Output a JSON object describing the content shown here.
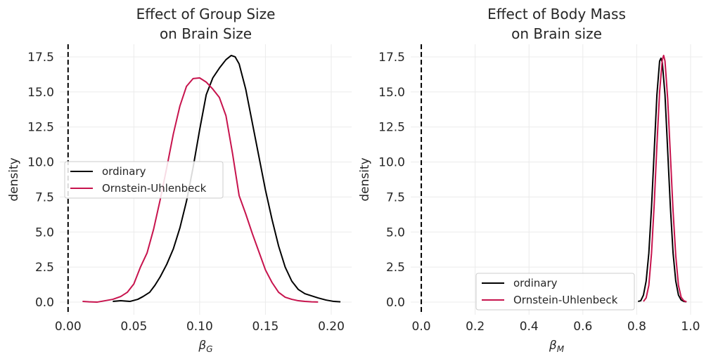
{
  "colors": {
    "ordinary": "#000000",
    "ou": "#c7134d",
    "zero_line": "#000000"
  },
  "chart_data": [
    {
      "type": "line",
      "title_lines": [
        "Effect of Group Size",
        "on Brain Size"
      ],
      "xlabel_main": "β",
      "xlabel_sub": "G",
      "ylabel": "density",
      "xlim": [
        -0.0063,
        0.2155
      ],
      "ylim": [
        -0.9,
        18.4
      ],
      "xticks": [
        0.0,
        0.05,
        0.1,
        0.15,
        0.2
      ],
      "xtick_labels": [
        "0.00",
        "0.05",
        "0.10",
        "0.15",
        "0.20"
      ],
      "yticks": [
        0.0,
        2.5,
        5.0,
        7.5,
        10.0,
        12.5,
        15.0,
        17.5
      ],
      "ytick_labels": [
        "0.0",
        "2.5",
        "5.0",
        "7.5",
        "10.0",
        "12.5",
        "15.0",
        "17.5"
      ],
      "vline_x": 0,
      "legend_position": "center-left",
      "series": [
        {
          "name": "ordinary",
          "color_key": "ordinary",
          "x": [
            0.034,
            0.04,
            0.047,
            0.053,
            0.057,
            0.062,
            0.066,
            0.07,
            0.075,
            0.08,
            0.085,
            0.09,
            0.095,
            0.1,
            0.105,
            0.11,
            0.115,
            0.12,
            0.124,
            0.127,
            0.13,
            0.135,
            0.14,
            0.145,
            0.15,
            0.155,
            0.16,
            0.165,
            0.17,
            0.175,
            0.18,
            0.185,
            0.19,
            0.196,
            0.202,
            0.207
          ],
          "y": [
            0.05,
            0.1,
            0.05,
            0.2,
            0.4,
            0.7,
            1.2,
            1.8,
            2.7,
            3.8,
            5.3,
            7.2,
            9.6,
            12.3,
            14.8,
            16.0,
            16.7,
            17.3,
            17.6,
            17.5,
            17.0,
            15.2,
            12.8,
            10.4,
            8.0,
            5.9,
            4.0,
            2.5,
            1.5,
            0.9,
            0.6,
            0.45,
            0.3,
            0.15,
            0.05,
            0.02
          ]
        },
        {
          "name": "Ornstein-Uhlenbeck",
          "color_key": "ou",
          "x": [
            0.011,
            0.016,
            0.022,
            0.028,
            0.034,
            0.04,
            0.045,
            0.05,
            0.055,
            0.06,
            0.065,
            0.07,
            0.075,
            0.08,
            0.085,
            0.09,
            0.095,
            0.1,
            0.105,
            0.11,
            0.115,
            0.12,
            0.125,
            0.13,
            0.135,
            0.14,
            0.145,
            0.15,
            0.155,
            0.16,
            0.165,
            0.17,
            0.175,
            0.18,
            0.185,
            0.19
          ],
          "y": [
            0.05,
            0.02,
            0.0,
            0.1,
            0.2,
            0.4,
            0.7,
            1.3,
            2.5,
            3.5,
            5.2,
            7.3,
            9.6,
            12.0,
            14.0,
            15.4,
            15.95,
            16.0,
            15.7,
            15.2,
            14.6,
            13.3,
            10.6,
            7.6,
            6.3,
            4.9,
            3.6,
            2.3,
            1.4,
            0.7,
            0.35,
            0.2,
            0.1,
            0.05,
            0.02,
            0.01
          ]
        }
      ]
    },
    {
      "type": "line",
      "title_lines": [
        "Effect of Body Mass",
        "on Brain size"
      ],
      "xlabel_main": "β",
      "xlabel_sub": "M",
      "ylabel": "density",
      "xlim": [
        -0.0393,
        1.0445
      ],
      "ylim": [
        -0.9,
        18.4
      ],
      "xticks": [
        0.0,
        0.2,
        0.4,
        0.6,
        0.8,
        1.0
      ],
      "xtick_labels": [
        "0.0",
        "0.2",
        "0.4",
        "0.6",
        "0.8",
        "1.0"
      ],
      "yticks": [
        0.0,
        2.5,
        5.0,
        7.5,
        10.0,
        12.5,
        15.0,
        17.5
      ],
      "ytick_labels": [
        "0.0",
        "2.5",
        "5.0",
        "7.5",
        "10.0",
        "12.5",
        "15.0",
        "17.5"
      ],
      "vline_x": 0,
      "legend_position": "lower-center",
      "series": [
        {
          "name": "ordinary",
          "color_key": "ordinary",
          "x": [
            0.805,
            0.815,
            0.825,
            0.835,
            0.845,
            0.855,
            0.865,
            0.875,
            0.885,
            0.89,
            0.895,
            0.905,
            0.915,
            0.925,
            0.935,
            0.945,
            0.955,
            0.965,
            0.975,
            0.985
          ],
          "y": [
            0.05,
            0.1,
            0.5,
            1.5,
            3.5,
            6.8,
            10.8,
            14.8,
            17.2,
            17.4,
            17.1,
            14.8,
            10.8,
            6.8,
            3.5,
            1.5,
            0.5,
            0.15,
            0.05,
            0.02
          ]
        },
        {
          "name": "Ornstein-Uhlenbeck",
          "color_key": "ou",
          "x": [
            0.825,
            0.835,
            0.845,
            0.855,
            0.865,
            0.875,
            0.885,
            0.895,
            0.9,
            0.905,
            0.915,
            0.925,
            0.935,
            0.945,
            0.955,
            0.965,
            0.975,
            0.985
          ],
          "y": [
            0.05,
            0.3,
            1.2,
            3.5,
            7.0,
            11.2,
            15.0,
            17.3,
            17.6,
            17.2,
            14.5,
            10.5,
            6.5,
            3.3,
            1.2,
            0.35,
            0.1,
            0.02
          ]
        }
      ]
    }
  ]
}
